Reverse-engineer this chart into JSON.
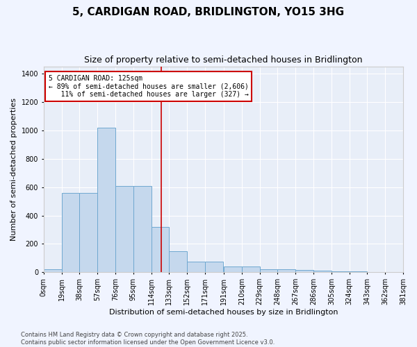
{
  "title": "5, CARDIGAN ROAD, BRIDLINGTON, YO15 3HG",
  "subtitle": "Size of property relative to semi-detached houses in Bridlington",
  "xlabel": "Distribution of semi-detached houses by size in Bridlington",
  "ylabel": "Number of semi-detached properties",
  "bar_color": "#c5d8ed",
  "bar_edge_color": "#6fa8d0",
  "background_color": "#e8eef8",
  "grid_color": "#ffffff",
  "annotation_text": "5 CARDIGAN ROAD: 125sqm\n← 89% of semi-detached houses are smaller (2,606)\n   11% of semi-detached houses are larger (327) →",
  "vline_x": 125,
  "vline_color": "#cc0000",
  "annotation_box_edge": "#cc0000",
  "bin_edges": [
    0,
    19,
    38,
    57,
    76,
    95,
    114,
    133,
    152,
    171,
    191,
    210,
    229,
    248,
    267,
    286,
    305,
    324,
    343,
    362,
    381
  ],
  "bin_labels": [
    "0sqm",
    "19sqm",
    "38sqm",
    "57sqm",
    "76sqm",
    "95sqm",
    "114sqm",
    "133sqm",
    "152sqm",
    "171sqm",
    "191sqm",
    "210sqm",
    "229sqm",
    "248sqm",
    "267sqm",
    "286sqm",
    "305sqm",
    "324sqm",
    "343sqm",
    "362sqm",
    "381sqm"
  ],
  "counts": [
    20,
    560,
    560,
    1020,
    610,
    610,
    320,
    150,
    75,
    75,
    40,
    40,
    20,
    20,
    15,
    10,
    8,
    5,
    3,
    2
  ],
  "ylim": [
    0,
    1450
  ],
  "yticks": [
    0,
    200,
    400,
    600,
    800,
    1000,
    1200,
    1400
  ],
  "footer": "Contains HM Land Registry data © Crown copyright and database right 2025.\nContains public sector information licensed under the Open Government Licence v3.0.",
  "title_fontsize": 11,
  "subtitle_fontsize": 9,
  "xlabel_fontsize": 8,
  "ylabel_fontsize": 8,
  "tick_fontsize": 7,
  "footer_fontsize": 6
}
